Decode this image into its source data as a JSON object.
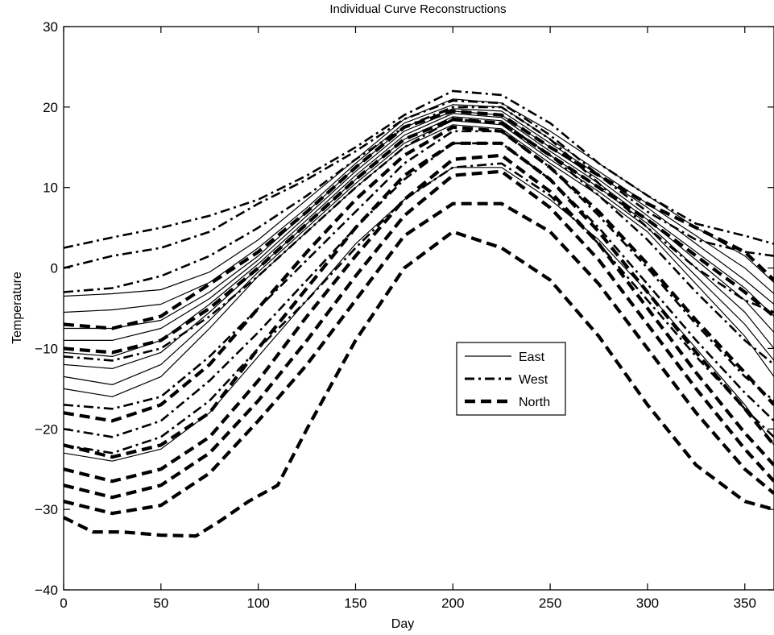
{
  "chart_data": {
    "type": "line",
    "title": "Individual Curve Reconstructions",
    "xlabel": "Day",
    "ylabel": "Temperature",
    "xlim": [
      0,
      365
    ],
    "ylim": [
      -40,
      30
    ],
    "xticks": [
      0,
      50,
      100,
      150,
      200,
      250,
      300,
      350
    ],
    "yticks": [
      -40,
      -30,
      -20,
      -10,
      0,
      10,
      20,
      30
    ],
    "grid": false,
    "legend_position": "center-right",
    "legend": [
      {
        "name": "East",
        "style": "solid"
      },
      {
        "name": "West",
        "style": "dashdot"
      },
      {
        "name": "North",
        "style": "dashed"
      }
    ],
    "series": [
      {
        "group": "East",
        "style": "solid",
        "x": [
          0,
          25,
          50,
          75,
          100,
          125,
          150,
          175,
          200,
          225,
          250,
          275,
          300,
          325,
          350,
          365
        ],
        "y": [
          -3.5,
          -3.2,
          -2.7,
          -0.5,
          3.5,
          8.5,
          13.5,
          18.5,
          21,
          20.5,
          17,
          13,
          9,
          5,
          1.5,
          -1.8
        ]
      },
      {
        "group": "East",
        "style": "solid",
        "x": [
          0,
          25,
          50,
          75,
          100,
          125,
          150,
          175,
          200,
          225,
          250,
          275,
          300,
          325,
          350,
          365
        ],
        "y": [
          -5.5,
          -5.2,
          -4.5,
          -1.8,
          2.5,
          7.5,
          13,
          18,
          20.3,
          20,
          16,
          12,
          8,
          4,
          0,
          -3.2
        ]
      },
      {
        "group": "East",
        "style": "solid",
        "x": [
          0,
          25,
          50,
          75,
          100,
          125,
          150,
          175,
          200,
          225,
          250,
          275,
          300,
          325,
          350,
          365
        ],
        "y": [
          -7.5,
          -7.5,
          -6.5,
          -3,
          1.5,
          7,
          12.5,
          17.5,
          19.8,
          19.5,
          15.5,
          11.5,
          7.5,
          3,
          -1.5,
          -4.5
        ]
      },
      {
        "group": "East",
        "style": "solid",
        "x": [
          0,
          25,
          50,
          75,
          100,
          125,
          150,
          175,
          200,
          225,
          250,
          275,
          300,
          325,
          350,
          365
        ],
        "y": [
          -9,
          -9,
          -7.5,
          -3.8,
          1,
          6.5,
          12,
          17,
          19.5,
          19,
          15,
          11,
          6.5,
          2,
          -2.5,
          -6
        ]
      },
      {
        "group": "East",
        "style": "solid",
        "x": [
          0,
          25,
          50,
          75,
          100,
          125,
          150,
          175,
          200,
          225,
          250,
          275,
          300,
          325,
          350,
          365
        ],
        "y": [
          -10.5,
          -11,
          -9,
          -4.5,
          0.5,
          6,
          11.5,
          16.5,
          19.2,
          18.7,
          14.5,
          10.5,
          6,
          1,
          -4,
          -8
        ]
      },
      {
        "group": "East",
        "style": "solid",
        "x": [
          0,
          25,
          50,
          75,
          100,
          125,
          150,
          175,
          200,
          225,
          250,
          275,
          300,
          325,
          350,
          365
        ],
        "y": [
          -12,
          -12.5,
          -10.5,
          -5.5,
          0,
          5.5,
          11,
          16,
          18.8,
          18.3,
          14,
          10,
          5.5,
          0,
          -5.5,
          -10
        ]
      },
      {
        "group": "East",
        "style": "solid",
        "x": [
          0,
          25,
          50,
          75,
          100,
          125,
          150,
          175,
          200,
          225,
          250,
          275,
          300,
          325,
          350,
          365
        ],
        "y": [
          -13.5,
          -14.5,
          -12,
          -6.5,
          -0.5,
          5,
          10.5,
          15.5,
          18.3,
          17.8,
          13.5,
          9.5,
          5,
          -1,
          -7,
          -11.5
        ]
      },
      {
        "group": "East",
        "style": "solid",
        "x": [
          0,
          25,
          50,
          75,
          100,
          125,
          150,
          175,
          200,
          225,
          250,
          275,
          300,
          325,
          350,
          365
        ],
        "y": [
          -15,
          -16,
          -13.5,
          -7.5,
          -1,
          4.5,
          10,
          15,
          17.8,
          17.3,
          13,
          9,
          4.5,
          -2,
          -8.5,
          -13.5
        ]
      },
      {
        "group": "East",
        "style": "solid",
        "x": [
          0,
          25,
          50,
          75,
          100,
          125,
          150,
          175,
          200,
          225,
          250,
          275,
          300,
          325,
          350,
          365
        ],
        "y": [
          -23,
          -24,
          -22.5,
          -18,
          -11,
          -4,
          3,
          8.5,
          12.5,
          12.5,
          8.5,
          3.5,
          -3,
          -10,
          -17,
          -22
        ]
      },
      {
        "group": "West",
        "style": "dashdot",
        "x": [
          0,
          25,
          50,
          75,
          100,
          125,
          150,
          175,
          200,
          225,
          250,
          275,
          300,
          325,
          350,
          365
        ],
        "y": [
          2.5,
          3.8,
          5,
          6.5,
          8.5,
          11.5,
          15,
          19,
          22,
          21.5,
          18,
          13,
          9,
          5.5,
          4,
          3
        ]
      },
      {
        "group": "West",
        "style": "dashdot",
        "x": [
          0,
          25,
          50,
          75,
          100,
          125,
          150,
          175,
          200,
          225,
          250,
          275,
          300,
          325,
          350,
          365
        ],
        "y": [
          0,
          1.5,
          2.5,
          4.5,
          8,
          11,
          14.5,
          18.5,
          20.8,
          20.5,
          16.5,
          11.5,
          7,
          3.5,
          2,
          1.5
        ]
      },
      {
        "group": "West",
        "style": "dashdot",
        "x": [
          0,
          25,
          50,
          75,
          100,
          125,
          150,
          175,
          200,
          225,
          250,
          275,
          300,
          325,
          350,
          365
        ],
        "y": [
          -3,
          -2.5,
          -1,
          1.5,
          5,
          9,
          13.5,
          17.5,
          20,
          20,
          16,
          10.5,
          5,
          0,
          -4,
          -5.5
        ]
      },
      {
        "group": "West",
        "style": "dashdot",
        "x": [
          0,
          25,
          50,
          75,
          100,
          125,
          150,
          175,
          200,
          225,
          250,
          275,
          300,
          325,
          350,
          365
        ],
        "y": [
          -11,
          -11.5,
          -10,
          -6,
          -1,
          4.5,
          10,
          15,
          18.5,
          18,
          14,
          9,
          3.5,
          -3,
          -9,
          -12
        ]
      },
      {
        "group": "West",
        "style": "dashdot",
        "x": [
          0,
          25,
          50,
          75,
          100,
          125,
          150,
          175,
          200,
          225,
          250,
          275,
          300,
          325,
          350,
          365
        ],
        "y": [
          -17,
          -17.5,
          -16,
          -11,
          -5,
          1,
          7,
          13,
          17,
          17,
          12.5,
          6.5,
          0,
          -7,
          -13.5,
          -16.5
        ]
      },
      {
        "group": "West",
        "style": "dashdot",
        "x": [
          0,
          25,
          50,
          75,
          100,
          125,
          150,
          175,
          200,
          225,
          250,
          275,
          300,
          325,
          350,
          365
        ],
        "y": [
          -20,
          -21,
          -19,
          -14,
          -8,
          -1.5,
          5,
          11,
          15.5,
          15.5,
          11,
          5,
          -2,
          -9,
          -15.5,
          -19
        ]
      },
      {
        "group": "West",
        "style": "dashdot",
        "x": [
          0,
          25,
          50,
          75,
          100,
          125,
          150,
          175,
          200,
          225,
          250,
          275,
          300,
          325,
          350,
          365
        ],
        "y": [
          -22,
          -23,
          -21,
          -16.5,
          -10,
          -4,
          2.5,
          8.5,
          12.5,
          13,
          9,
          3,
          -4,
          -11,
          -17.5,
          -21
        ]
      },
      {
        "group": "North",
        "style": "dashed",
        "x": [
          0,
          25,
          50,
          75,
          100,
          125,
          150,
          175,
          200,
          225,
          250,
          275,
          300,
          325,
          350,
          365
        ],
        "y": [
          -7,
          -7.5,
          -6,
          -2,
          2,
          7,
          12.5,
          17.5,
          19.5,
          19,
          15,
          11.5,
          8,
          5,
          2,
          -1.5
        ]
      },
      {
        "group": "North",
        "style": "dashed",
        "x": [
          0,
          25,
          50,
          75,
          100,
          125,
          150,
          175,
          200,
          225,
          250,
          275,
          300,
          325,
          350,
          365
        ],
        "y": [
          -10,
          -10.5,
          -9,
          -5,
          0,
          5.5,
          11,
          16,
          18.5,
          18,
          14,
          10,
          6,
          1.5,
          -3,
          -6
        ]
      },
      {
        "group": "North",
        "style": "dashed",
        "x": [
          0,
          25,
          50,
          75,
          100,
          125,
          150,
          175,
          200,
          225,
          250,
          275,
          300,
          325,
          350,
          365
        ],
        "y": [
          -18,
          -19,
          -17,
          -12,
          -5,
          2,
          8.5,
          14,
          17.5,
          17,
          12.5,
          7,
          0.5,
          -6.5,
          -13,
          -17
        ]
      },
      {
        "group": "North",
        "style": "dashed",
        "x": [
          0,
          25,
          50,
          75,
          100,
          125,
          150,
          175,
          200,
          225,
          250,
          275,
          300,
          325,
          350,
          365
        ],
        "y": [
          -22,
          -23.5,
          -22,
          -18,
          -10,
          -2.5,
          5,
          11.5,
          15.5,
          15.5,
          11,
          4.5,
          -3,
          -10.5,
          -17.5,
          -22
        ]
      },
      {
        "group": "North",
        "style": "dashed",
        "x": [
          0,
          25,
          50,
          75,
          100,
          125,
          150,
          175,
          200,
          225,
          250,
          275,
          300,
          325,
          350,
          365
        ],
        "y": [
          -25,
          -26.5,
          -25,
          -21,
          -14,
          -6,
          1.5,
          8.5,
          13.5,
          14,
          9.5,
          3,
          -5,
          -13,
          -20.5,
          -24.5
        ]
      },
      {
        "group": "North",
        "style": "dashed",
        "x": [
          0,
          25,
          50,
          75,
          100,
          125,
          150,
          175,
          200,
          225,
          250,
          275,
          300,
          325,
          350,
          365
        ],
        "y": [
          -27,
          -28.5,
          -27,
          -23,
          -16.5,
          -9,
          -1,
          6.5,
          11.5,
          12,
          7.5,
          1,
          -7,
          -15,
          -22.5,
          -26.5
        ]
      },
      {
        "group": "North",
        "style": "dashed",
        "x": [
          0,
          25,
          50,
          75,
          100,
          125,
          150,
          175,
          200,
          225,
          250,
          275,
          300,
          325,
          350,
          365
        ],
        "y": [
          -29,
          -30.5,
          -29.5,
          -25.5,
          -19,
          -12,
          -4,
          4,
          8,
          8,
          4.5,
          -2,
          -10,
          -18,
          -25,
          -28
        ]
      },
      {
        "group": "North",
        "style": "dashed",
        "x": [
          0,
          15,
          30,
          50,
          68,
          80,
          95,
          110,
          125,
          150,
          175,
          200,
          225,
          250,
          275,
          300,
          325,
          350,
          365
        ],
        "y": [
          -31,
          -32.8,
          -32.8,
          -33.2,
          -33.3,
          -31.5,
          -29,
          -27,
          -20,
          -9,
          0,
          4.5,
          2.5,
          -1.5,
          -8.5,
          -17,
          -24.5,
          -29,
          -30
        ]
      }
    ]
  }
}
